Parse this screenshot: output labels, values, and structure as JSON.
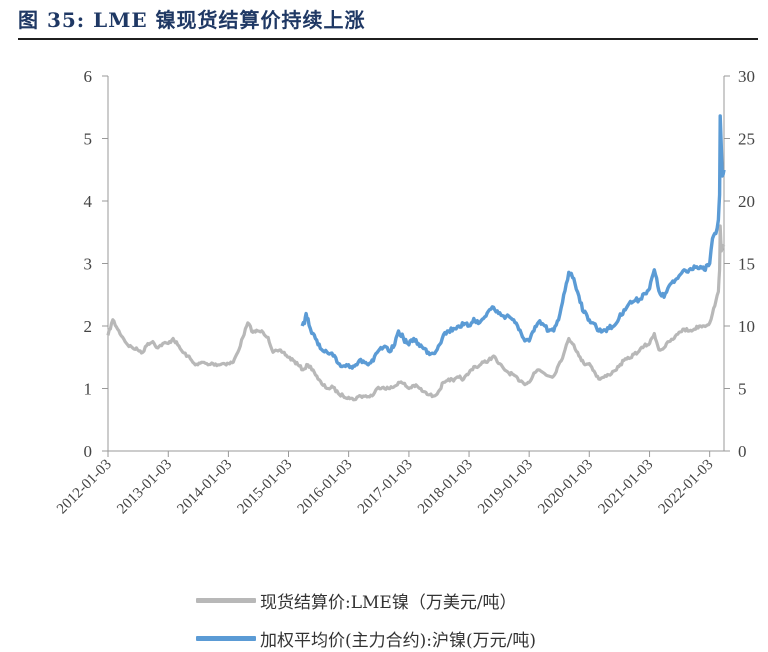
{
  "header": {
    "title": "图 35:  LME 镍现货结算价持续上涨"
  },
  "chart_data": {
    "type": "line",
    "title": "图 35:  LME 镍现货结算价持续上涨",
    "x_ticks": [
      "2012-01-03",
      "2013-01-03",
      "2014-01-03",
      "2015-01-03",
      "2016-01-03",
      "2017-01-03",
      "2018-01-03",
      "2019-01-03",
      "2020-01-03",
      "2021-01-03",
      "2022-01-03"
    ],
    "y_left": {
      "min": 0,
      "max": 6,
      "ticks": [
        "0",
        "1",
        "2",
        "3",
        "4",
        "5",
        "6"
      ]
    },
    "y_right": {
      "min": 0,
      "max": 30,
      "ticks": [
        "0",
        "5",
        "10",
        "15",
        "20",
        "25",
        "30"
      ]
    },
    "x_range": [
      "2012-01-03",
      "2022-03-31"
    ],
    "series": [
      {
        "name": "现货结算价:LME镍（万美元/吨）",
        "axis": "left",
        "color": "#b8b8b8",
        "points": [
          [
            "2012-01-03",
            1.85
          ],
          [
            "2012-02-01",
            2.1
          ],
          [
            "2012-03-01",
            1.95
          ],
          [
            "2012-04-01",
            1.82
          ],
          [
            "2012-05-01",
            1.7
          ],
          [
            "2012-06-01",
            1.65
          ],
          [
            "2012-07-01",
            1.62
          ],
          [
            "2012-08-01",
            1.58
          ],
          [
            "2012-09-01",
            1.72
          ],
          [
            "2012-10-01",
            1.75
          ],
          [
            "2012-11-01",
            1.65
          ],
          [
            "2012-12-01",
            1.72
          ],
          [
            "2013-01-03",
            1.72
          ],
          [
            "2013-02-01",
            1.8
          ],
          [
            "2013-03-01",
            1.7
          ],
          [
            "2013-04-01",
            1.58
          ],
          [
            "2013-05-01",
            1.52
          ],
          [
            "2013-06-01",
            1.42
          ],
          [
            "2013-07-01",
            1.38
          ],
          [
            "2013-08-01",
            1.42
          ],
          [
            "2013-09-01",
            1.38
          ],
          [
            "2013-10-01",
            1.4
          ],
          [
            "2013-11-01",
            1.38
          ],
          [
            "2013-12-01",
            1.4
          ],
          [
            "2014-01-03",
            1.4
          ],
          [
            "2014-02-01",
            1.42
          ],
          [
            "2014-03-01",
            1.58
          ],
          [
            "2014-04-01",
            1.82
          ],
          [
            "2014-05-01",
            2.05
          ],
          [
            "2014-06-01",
            1.9
          ],
          [
            "2014-07-01",
            1.92
          ],
          [
            "2014-08-01",
            1.9
          ],
          [
            "2014-09-01",
            1.82
          ],
          [
            "2014-10-01",
            1.58
          ],
          [
            "2014-11-01",
            1.6
          ],
          [
            "2014-12-01",
            1.58
          ],
          [
            "2015-01-03",
            1.5
          ],
          [
            "2015-02-01",
            1.45
          ],
          [
            "2015-03-01",
            1.38
          ],
          [
            "2015-04-01",
            1.3
          ],
          [
            "2015-05-01",
            1.38
          ],
          [
            "2015-06-01",
            1.3
          ],
          [
            "2015-07-01",
            1.15
          ],
          [
            "2015-08-01",
            1.05
          ],
          [
            "2015-09-01",
            1.0
          ],
          [
            "2015-10-01",
            1.02
          ],
          [
            "2015-11-01",
            0.92
          ],
          [
            "2015-12-01",
            0.88
          ],
          [
            "2016-01-03",
            0.86
          ],
          [
            "2016-02-01",
            0.82
          ],
          [
            "2016-03-01",
            0.87
          ],
          [
            "2016-04-01",
            0.88
          ],
          [
            "2016-05-01",
            0.87
          ],
          [
            "2016-06-01",
            0.9
          ],
          [
            "2016-07-01",
            1.02
          ],
          [
            "2016-08-01",
            1.02
          ],
          [
            "2016-09-01",
            1.0
          ],
          [
            "2016-10-01",
            1.02
          ],
          [
            "2016-11-01",
            1.1
          ],
          [
            "2016-12-01",
            1.08
          ],
          [
            "2017-01-03",
            1.0
          ],
          [
            "2017-02-01",
            1.05
          ],
          [
            "2017-03-01",
            1.02
          ],
          [
            "2017-04-01",
            0.95
          ],
          [
            "2017-05-01",
            0.9
          ],
          [
            "2017-06-01",
            0.88
          ],
          [
            "2017-07-01",
            0.95
          ],
          [
            "2017-08-01",
            1.1
          ],
          [
            "2017-09-01",
            1.15
          ],
          [
            "2017-10-01",
            1.12
          ],
          [
            "2017-11-01",
            1.18
          ],
          [
            "2017-12-01",
            1.15
          ],
          [
            "2018-01-03",
            1.25
          ],
          [
            "2018-02-01",
            1.35
          ],
          [
            "2018-03-01",
            1.35
          ],
          [
            "2018-04-01",
            1.42
          ],
          [
            "2018-05-01",
            1.45
          ],
          [
            "2018-06-01",
            1.52
          ],
          [
            "2018-07-01",
            1.4
          ],
          [
            "2018-08-01",
            1.32
          ],
          [
            "2018-09-01",
            1.25
          ],
          [
            "2018-10-01",
            1.22
          ],
          [
            "2018-11-01",
            1.12
          ],
          [
            "2018-12-01",
            1.08
          ],
          [
            "2019-01-03",
            1.1
          ],
          [
            "2019-02-01",
            1.25
          ],
          [
            "2019-03-01",
            1.3
          ],
          [
            "2019-04-01",
            1.25
          ],
          [
            "2019-05-01",
            1.2
          ],
          [
            "2019-06-01",
            1.2
          ],
          [
            "2019-07-01",
            1.38
          ],
          [
            "2019-08-01",
            1.55
          ],
          [
            "2019-09-01",
            1.8
          ],
          [
            "2019-10-01",
            1.7
          ],
          [
            "2019-11-01",
            1.52
          ],
          [
            "2019-12-01",
            1.4
          ],
          [
            "2020-01-03",
            1.4
          ],
          [
            "2020-02-01",
            1.28
          ],
          [
            "2020-03-01",
            1.15
          ],
          [
            "2020-04-01",
            1.18
          ],
          [
            "2020-05-01",
            1.22
          ],
          [
            "2020-06-01",
            1.28
          ],
          [
            "2020-07-01",
            1.35
          ],
          [
            "2020-08-01",
            1.45
          ],
          [
            "2020-09-01",
            1.48
          ],
          [
            "2020-10-01",
            1.55
          ],
          [
            "2020-11-01",
            1.6
          ],
          [
            "2020-12-01",
            1.68
          ],
          [
            "2021-01-03",
            1.72
          ],
          [
            "2021-02-01",
            1.88
          ],
          [
            "2021-03-01",
            1.62
          ],
          [
            "2021-04-01",
            1.65
          ],
          [
            "2021-05-01",
            1.75
          ],
          [
            "2021-06-01",
            1.8
          ],
          [
            "2021-07-01",
            1.9
          ],
          [
            "2021-08-01",
            1.95
          ],
          [
            "2021-09-01",
            1.92
          ],
          [
            "2021-10-01",
            1.95
          ],
          [
            "2021-11-01",
            2.0
          ],
          [
            "2021-12-01",
            2.0
          ],
          [
            "2022-01-03",
            2.05
          ],
          [
            "2022-01-20",
            2.2
          ],
          [
            "2022-02-10",
            2.4
          ],
          [
            "2022-02-25",
            2.55
          ],
          [
            "2022-03-04",
            2.9
          ],
          [
            "2022-03-08",
            3.6
          ],
          [
            "2022-03-15",
            3.2
          ],
          [
            "2022-03-31",
            3.3
          ]
        ]
      },
      {
        "name": "加权平均价(主力合约):沪镍(万元/吨)",
        "axis": "right",
        "color": "#5b9bd5",
        "points": [
          [
            "2015-03-27",
            10.0
          ],
          [
            "2015-04-10",
            10.2
          ],
          [
            "2015-04-20",
            11.0
          ],
          [
            "2015-05-01",
            10.6
          ],
          [
            "2015-05-15",
            9.8
          ],
          [
            "2015-06-01",
            9.4
          ],
          [
            "2015-06-15",
            9.0
          ],
          [
            "2015-07-01",
            8.5
          ],
          [
            "2015-07-15",
            8.2
          ],
          [
            "2015-08-01",
            8.0
          ],
          [
            "2015-09-01",
            7.8
          ],
          [
            "2015-10-01",
            7.6
          ],
          [
            "2015-11-01",
            7.0
          ],
          [
            "2015-12-01",
            6.8
          ],
          [
            "2016-01-03",
            6.9
          ],
          [
            "2016-02-01",
            6.8
          ],
          [
            "2016-03-01",
            7.1
          ],
          [
            "2016-04-01",
            7.2
          ],
          [
            "2016-05-01",
            6.9
          ],
          [
            "2016-06-01",
            7.2
          ],
          [
            "2016-07-01",
            8.0
          ],
          [
            "2016-08-01",
            8.3
          ],
          [
            "2016-09-01",
            8.0
          ],
          [
            "2016-10-01",
            8.3
          ],
          [
            "2016-11-01",
            9.6
          ],
          [
            "2016-12-01",
            9.0
          ],
          [
            "2017-01-03",
            8.5
          ],
          [
            "2017-02-01",
            9.0
          ],
          [
            "2017-03-01",
            8.6
          ],
          [
            "2017-04-01",
            8.2
          ],
          [
            "2017-05-01",
            7.9
          ],
          [
            "2017-06-01",
            7.8
          ],
          [
            "2017-07-01",
            8.4
          ],
          [
            "2017-08-01",
            9.3
          ],
          [
            "2017-09-01",
            9.6
          ],
          [
            "2017-10-01",
            9.8
          ],
          [
            "2017-11-01",
            10.0
          ],
          [
            "2017-12-01",
            10.1
          ],
          [
            "2018-01-03",
            10.0
          ],
          [
            "2018-02-01",
            10.6
          ],
          [
            "2018-03-01",
            10.2
          ],
          [
            "2018-04-01",
            10.6
          ],
          [
            "2018-05-01",
            11.2
          ],
          [
            "2018-06-01",
            11.5
          ],
          [
            "2018-07-01",
            11.0
          ],
          [
            "2018-08-01",
            10.8
          ],
          [
            "2018-09-01",
            10.8
          ],
          [
            "2018-10-01",
            10.5
          ],
          [
            "2018-11-01",
            9.7
          ],
          [
            "2018-12-01",
            9.0
          ],
          [
            "2019-01-03",
            8.8
          ],
          [
            "2019-02-01",
            9.6
          ],
          [
            "2019-03-01",
            10.3
          ],
          [
            "2019-04-01",
            10.1
          ],
          [
            "2019-05-01",
            9.6
          ],
          [
            "2019-06-01",
            9.6
          ],
          [
            "2019-07-01",
            10.5
          ],
          [
            "2019-08-01",
            12.5
          ],
          [
            "2019-09-01",
            14.3
          ],
          [
            "2019-10-01",
            13.8
          ],
          [
            "2019-11-01",
            12.4
          ],
          [
            "2019-12-01",
            11.1
          ],
          [
            "2020-01-03",
            10.5
          ],
          [
            "2020-02-01",
            10.2
          ],
          [
            "2020-03-01",
            9.6
          ],
          [
            "2020-04-01",
            9.7
          ],
          [
            "2020-05-01",
            9.8
          ],
          [
            "2020-06-01",
            10.0
          ],
          [
            "2020-07-01",
            10.6
          ],
          [
            "2020-08-01",
            11.3
          ],
          [
            "2020-09-01",
            11.8
          ],
          [
            "2020-10-01",
            12.0
          ],
          [
            "2020-11-01",
            12.1
          ],
          [
            "2020-12-01",
            12.6
          ],
          [
            "2021-01-03",
            13.0
          ],
          [
            "2021-02-01",
            14.5
          ],
          [
            "2021-03-01",
            12.8
          ],
          [
            "2021-04-01",
            12.3
          ],
          [
            "2021-05-01",
            13.2
          ],
          [
            "2021-06-01",
            13.5
          ],
          [
            "2021-07-01",
            14.0
          ],
          [
            "2021-08-01",
            14.5
          ],
          [
            "2021-09-01",
            14.5
          ],
          [
            "2021-10-01",
            14.8
          ],
          [
            "2021-11-01",
            14.6
          ],
          [
            "2021-12-01",
            14.5
          ],
          [
            "2022-01-03",
            15.0
          ],
          [
            "2022-01-20",
            17.0
          ],
          [
            "2022-02-10",
            17.4
          ],
          [
            "2022-02-25",
            18.5
          ],
          [
            "2022-03-04",
            20.5
          ],
          [
            "2022-03-07",
            24.5
          ],
          [
            "2022-03-08",
            26.8
          ],
          [
            "2022-03-20",
            22.0
          ],
          [
            "2022-03-31",
            22.5
          ]
        ]
      }
    ]
  }
}
